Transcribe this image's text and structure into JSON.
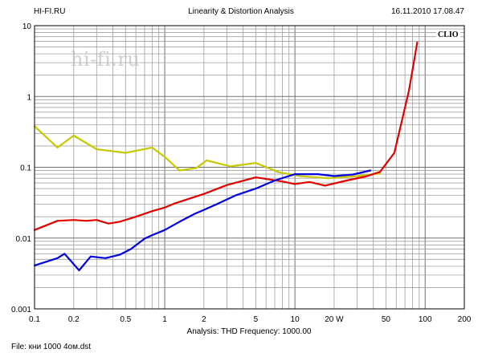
{
  "header": {
    "left": "HI-FI.RU",
    "center": "Linearity & Distortion Analysis",
    "right": "16.11.2010 17.08.47"
  },
  "footer": {
    "analysis": "Analysis: THD   Frequency: 1000.00",
    "file": "File: кни 1000 4ом.dst"
  },
  "brand": "CLIO",
  "watermark": "hi-fi.ru",
  "chart_data": {
    "type": "line",
    "title": "Linearity & Distortion Analysis",
    "xscale": "log",
    "yscale": "log",
    "xlim": [
      0.1,
      200
    ],
    "ylim": [
      0.001,
      10
    ],
    "grid": true,
    "x_ticks": [
      "0.1",
      "0.2",
      "0.5",
      "1",
      "2",
      "5",
      "10",
      "20 W",
      "50",
      "100",
      "200"
    ],
    "y_ticks": [
      "10",
      "1",
      "0.1",
      "0.01",
      "0.001"
    ],
    "series": [
      {
        "color": "#c8c800",
        "points": [
          [
            0.1,
            0.38
          ],
          [
            0.15,
            0.19
          ],
          [
            0.2,
            0.28
          ],
          [
            0.3,
            0.18
          ],
          [
            0.5,
            0.16
          ],
          [
            0.8,
            0.19
          ],
          [
            1.0,
            0.14
          ],
          [
            1.3,
            0.09
          ],
          [
            1.75,
            0.098
          ],
          [
            2.1,
            0.125
          ],
          [
            3.2,
            0.103
          ],
          [
            5.0,
            0.115
          ],
          [
            7.5,
            0.085
          ],
          [
            11,
            0.075
          ],
          [
            18,
            0.07
          ],
          [
            30,
            0.075
          ],
          [
            45,
            0.082
          ]
        ]
      },
      {
        "color": "#e00000",
        "points": [
          [
            0.1,
            0.013
          ],
          [
            0.15,
            0.0175
          ],
          [
            0.2,
            0.018
          ],
          [
            0.25,
            0.0175
          ],
          [
            0.3,
            0.018
          ],
          [
            0.37,
            0.016
          ],
          [
            0.45,
            0.017
          ],
          [
            0.6,
            0.02
          ],
          [
            0.8,
            0.024
          ],
          [
            1.0,
            0.027
          ],
          [
            1.2,
            0.031
          ],
          [
            2.0,
            0.042
          ],
          [
            3.0,
            0.056
          ],
          [
            5.0,
            0.072
          ],
          [
            8.0,
            0.063
          ],
          [
            10,
            0.058
          ],
          [
            13,
            0.062
          ],
          [
            17,
            0.055
          ],
          [
            25,
            0.065
          ],
          [
            35,
            0.074
          ],
          [
            45,
            0.086
          ],
          [
            58,
            0.16
          ],
          [
            75,
            1.2
          ],
          [
            87,
            5.8
          ]
        ]
      },
      {
        "color": "#0000e0",
        "points": [
          [
            0.1,
            0.0041
          ],
          [
            0.15,
            0.0052
          ],
          [
            0.17,
            0.006
          ],
          [
            0.22,
            0.0035
          ],
          [
            0.27,
            0.0055
          ],
          [
            0.35,
            0.0052
          ],
          [
            0.45,
            0.0058
          ],
          [
            0.55,
            0.007
          ],
          [
            0.7,
            0.0098
          ],
          [
            0.8,
            0.011
          ],
          [
            1.0,
            0.013
          ],
          [
            1.3,
            0.017
          ],
          [
            1.7,
            0.022
          ],
          [
            2.0,
            0.025
          ],
          [
            2.5,
            0.03
          ],
          [
            3.5,
            0.04
          ],
          [
            5.0,
            0.05
          ],
          [
            7.0,
            0.065
          ],
          [
            10,
            0.08
          ],
          [
            15,
            0.08
          ],
          [
            20,
            0.075
          ],
          [
            28,
            0.079
          ],
          [
            38,
            0.09
          ]
        ]
      }
    ]
  }
}
